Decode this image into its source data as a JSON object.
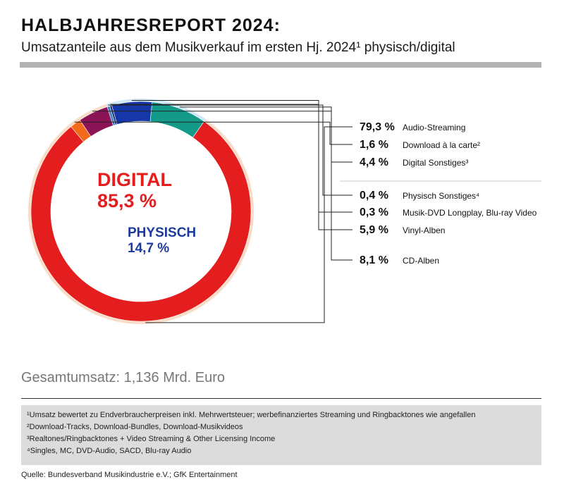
{
  "header": {
    "title": "HALBJAHRESREPORT 2024:",
    "subtitle": "Umsatzanteile aus dem Musikverkauf im ersten Hj. 2024¹ physisch/digital"
  },
  "chart_data": {
    "type": "pie",
    "variant": "nested-donut",
    "center_labels": [
      {
        "label": "DIGITAL",
        "value": "85,3 %",
        "color": "#e41e1e"
      },
      {
        "label": "PHYSISCH",
        "value": "14,7 %",
        "color": "#1c3b9c"
      }
    ],
    "outer_ring": [
      {
        "name": "Digital",
        "value": 85.3,
        "color": "#f9dcc8"
      },
      {
        "name": "Physisch",
        "value": 14.7,
        "color": "#cfe8f7"
      }
    ],
    "slices": [
      {
        "value_label": "79,3 %",
        "label": "Audio-Streaming",
        "value": 79.3,
        "color": "#e41e1e",
        "group": "digital"
      },
      {
        "value_label": "1,6 %",
        "label": "Download à la carte²",
        "value": 1.6,
        "color": "#f26b1d",
        "group": "digital"
      },
      {
        "value_label": "4,4 %",
        "label": "Digital Sonstiges³",
        "value": 4.4,
        "color": "#8b1457",
        "group": "digital"
      },
      {
        "value_label": "0,4 %",
        "label": "Physisch Sonstiges⁴",
        "value": 0.4,
        "color": "#3a7fc1",
        "group": "physisch"
      },
      {
        "value_label": "0,3 %",
        "label": "Musik-DVD Longplay, Blu-ray Video",
        "value": 0.3,
        "color": "#1b2a6b",
        "group": "physisch"
      },
      {
        "value_label": "5,9 %",
        "label": "Vinyl-Alben",
        "value": 5.9,
        "color": "#1537a8",
        "group": "physisch"
      },
      {
        "value_label": "8,1 %",
        "label": "CD-Alben",
        "value": 8.1,
        "color": "#149a88",
        "group": "physisch"
      }
    ]
  },
  "total": "Gesamtumsatz: 1,136 Mrd. Euro",
  "footnotes": [
    "¹Umsatz bewertet zu Endverbraucherpreisen inkl. Mehrwertsteuer; werbefinanziertes Streaming und Ringbacktones wie angefallen",
    "²Download-Tracks, Download-Bundles, Download-Musikvideos",
    "³Realtones/Ringbacktones + Video Streaming & Other Licensing Income",
    "⁴Singles, MC, DVD-Audio, SACD, Blu-ray Audio"
  ],
  "source": "Quelle: Bundesverband Musikindustrie e.V.; GfK Entertainment"
}
